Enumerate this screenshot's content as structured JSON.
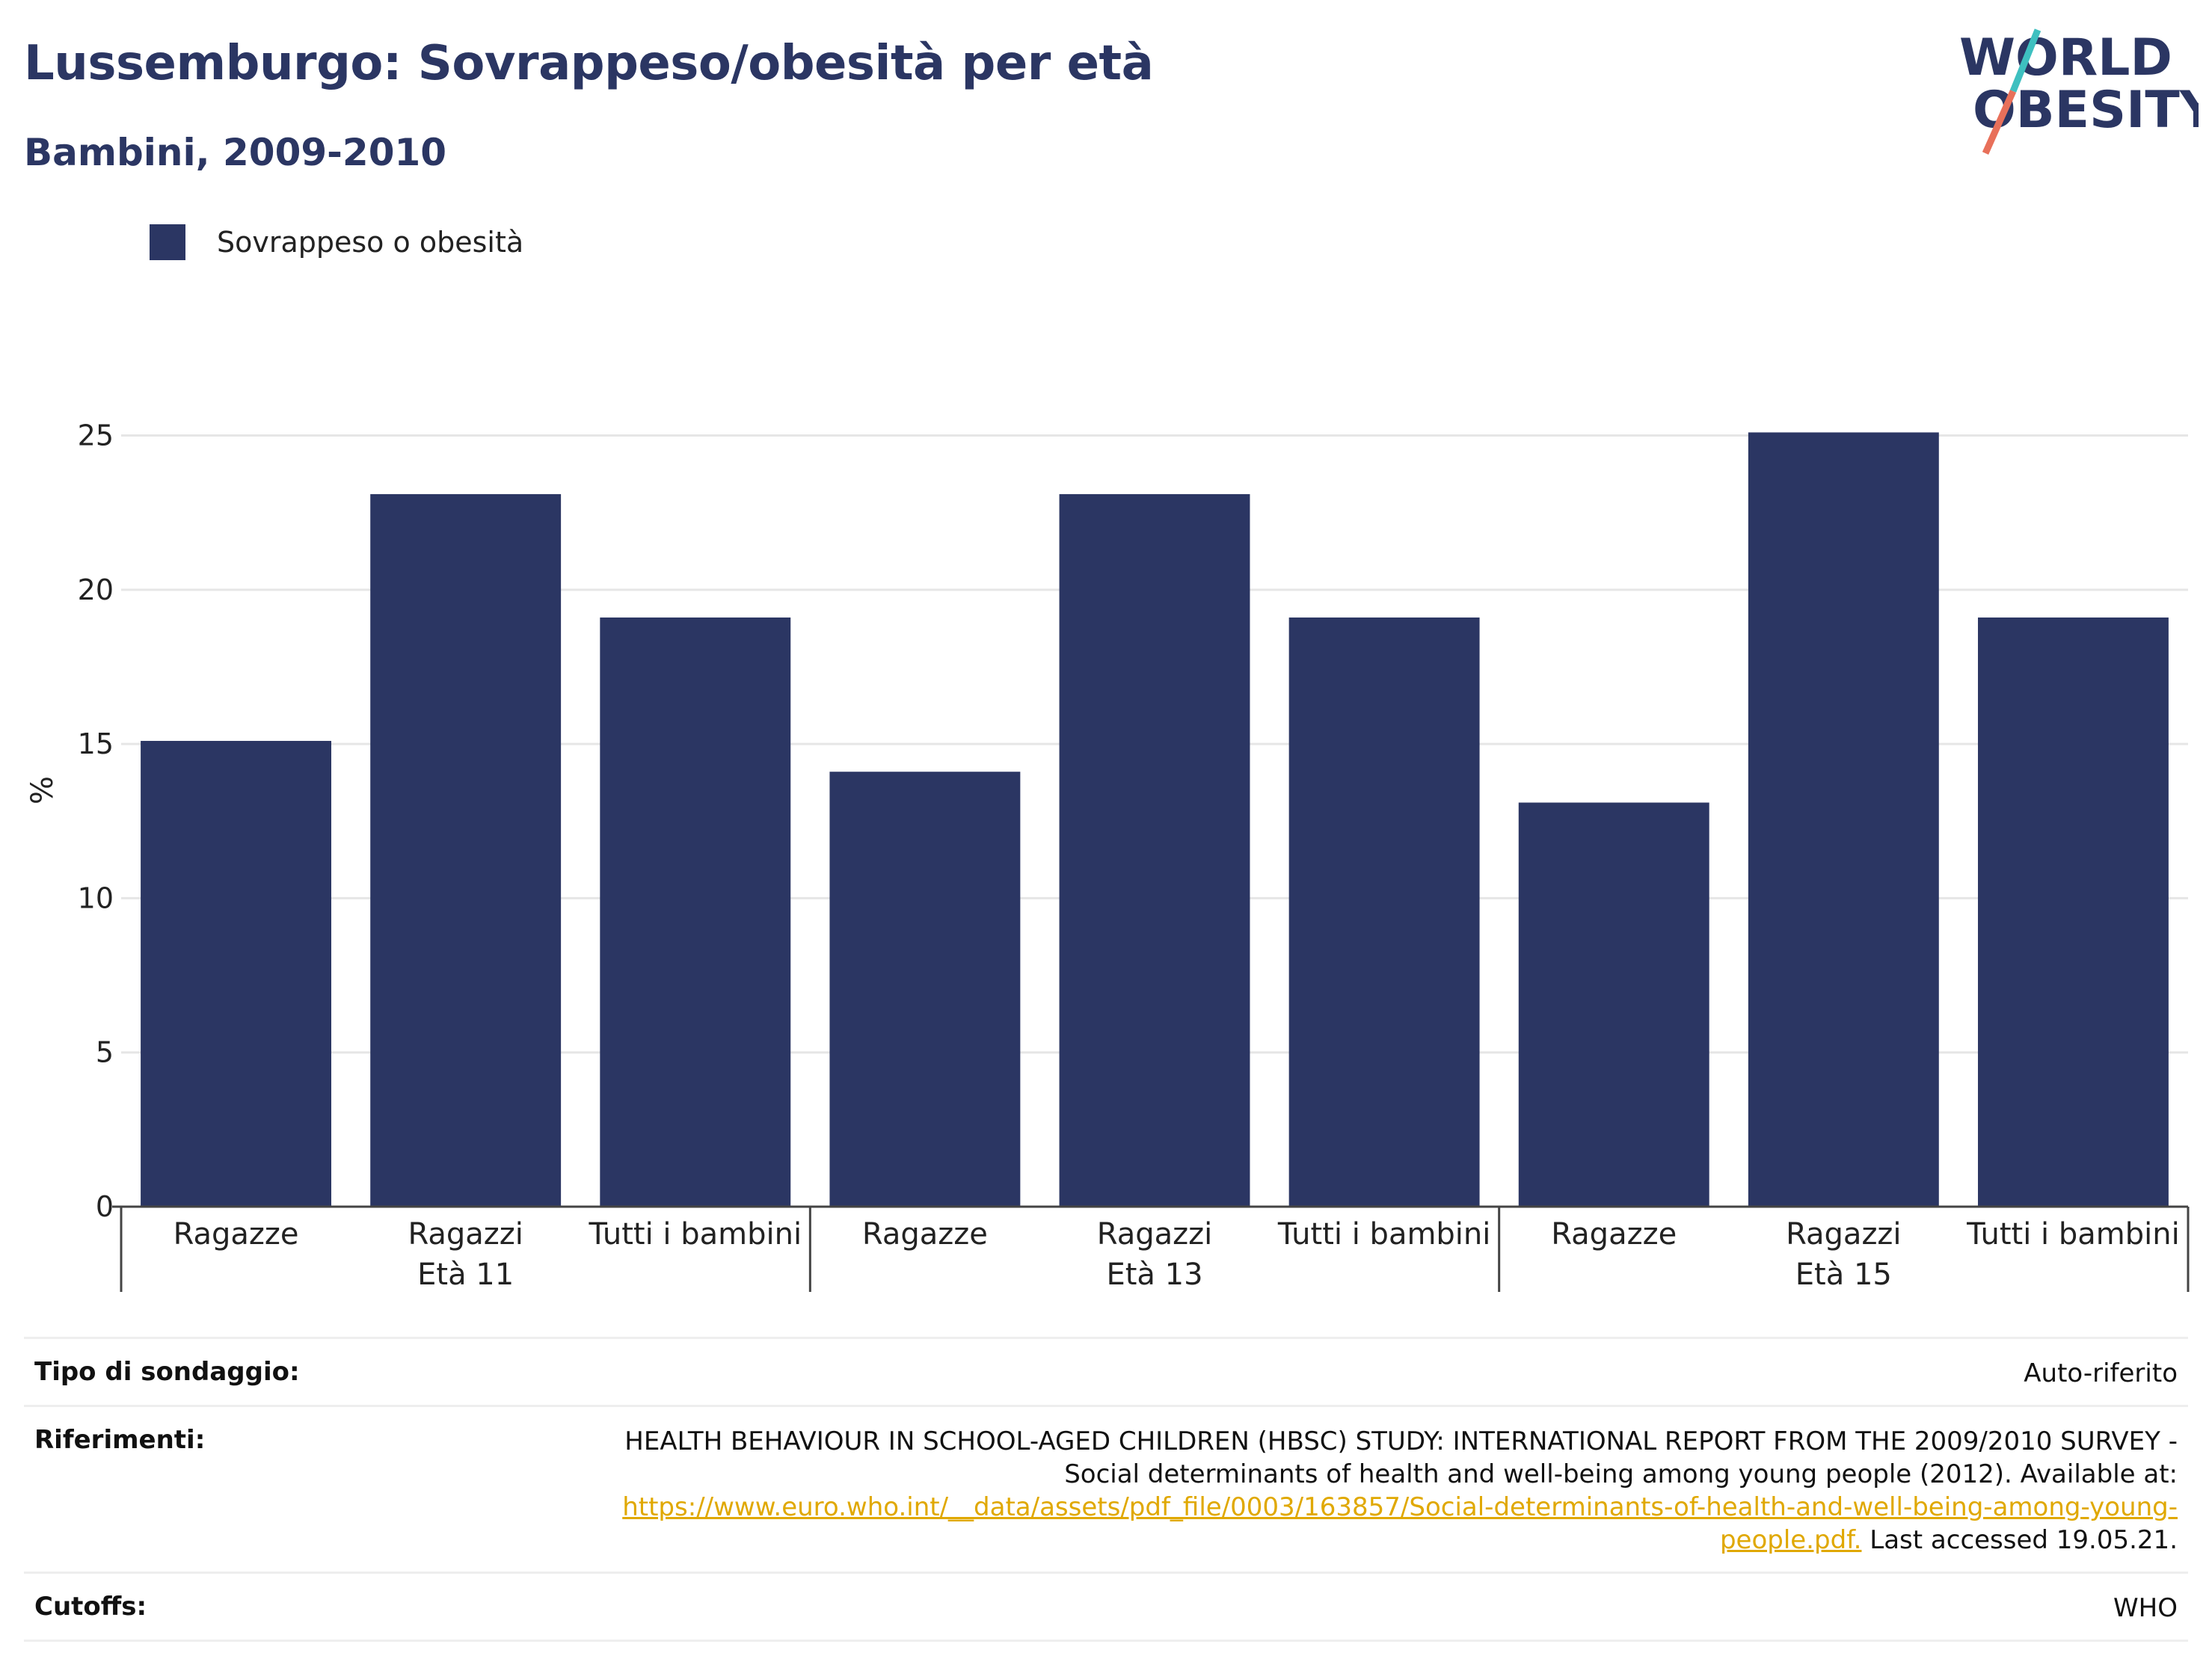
{
  "header": {
    "title": "Lussemburgo: Sovrappeso/obesità per età",
    "subtitle": "Bambini, 2009-2010"
  },
  "logo": {
    "line1": "WORLD",
    "line2": "OBESITY",
    "colors": {
      "text": "#2b3663",
      "slash_top": "#3ec0c0",
      "slash_bottom": "#e8705a"
    }
  },
  "legend": {
    "label": "Sovrappeso o obesità",
    "color": "#2b3663"
  },
  "chart_data": {
    "type": "bar",
    "ylabel": "%",
    "ylim": [
      0,
      27
    ],
    "yticks": [
      0,
      5,
      10,
      15,
      20,
      25
    ],
    "grid": true,
    "legend_position": "top-left",
    "color": "#2b3663",
    "groups": [
      {
        "label": "Età 11",
        "categories": [
          "Ragazze",
          "Ragazzi",
          "Tutti i bambini"
        ],
        "values": [
          15.1,
          23.1,
          19.1
        ]
      },
      {
        "label": "Età 13",
        "categories": [
          "Ragazze",
          "Ragazzi",
          "Tutti i bambini"
        ],
        "values": [
          14.1,
          23.1,
          19.1
        ]
      },
      {
        "label": "Età 15",
        "categories": [
          "Ragazze",
          "Ragazzi",
          "Tutti i bambini"
        ],
        "values": [
          13.1,
          25.1,
          19.1
        ]
      }
    ],
    "series": [
      {
        "name": "Sovrappeso o obesità"
      }
    ]
  },
  "meta": {
    "survey_label": "Tipo di sondaggio:",
    "survey_value": "Auto-riferito",
    "ref_label": "Riferimenti:",
    "ref_text1": "HEALTH BEHAVIOUR IN SCHOOL-AGED CHILDREN (HBSC) STUDY: INTERNATIONAL REPORT FROM THE 2009/2010 SURVEY - Social determinants of health and well-being among young people (2012). Available at:",
    "ref_link": "https://www.euro.who.int/__data/assets/pdf_file/0003/163857/Social-determinants-of-health-and-well-being-among-young-people.pdf.",
    "ref_text2": "Last accessed 19.05.21.",
    "cutoffs_label": "Cutoffs:",
    "cutoffs_value": "WHO"
  }
}
